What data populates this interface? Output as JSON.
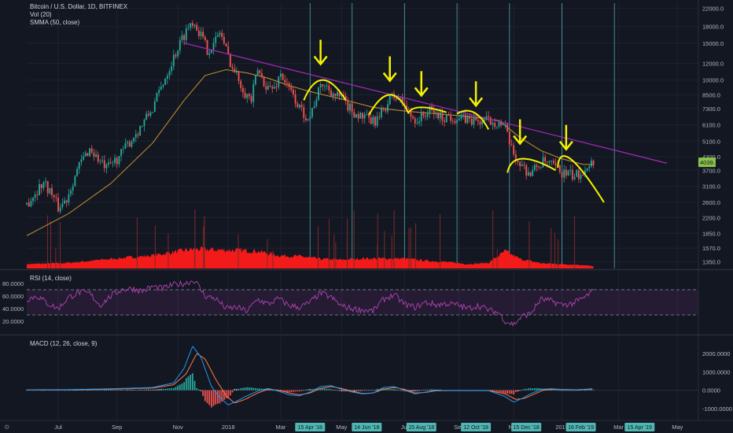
{
  "chart_data": {
    "type": "candlestick",
    "price_pane": {
      "legend": [
        "Bitcoin / U.S. Dollar, 1D, BITFINEX",
        "Vol (20)",
        "SMMA (50, close)"
      ],
      "y_scale": "log",
      "y_ticks": [
        "22000.0",
        "18000.0",
        "15000.0",
        "12000.0",
        "10000.0",
        "8500.0",
        "7300.0",
        "6100.0",
        "5100.0",
        "4300.0",
        "3700.0",
        "3100.0",
        "2600.0",
        "2200.0",
        "1850.0",
        "1570.0",
        "1350.0"
      ],
      "last_price_label": "4039.1",
      "price_path": [
        [
          0,
          2550
        ],
        [
          8,
          3250
        ],
        [
          12,
          2850
        ],
        [
          15,
          2450
        ],
        [
          19,
          2700
        ],
        [
          25,
          3900
        ],
        [
          30,
          4700
        ],
        [
          35,
          4050
        ],
        [
          38,
          3750
        ],
        [
          44,
          4300
        ],
        [
          50,
          5200
        ],
        [
          55,
          6100
        ],
        [
          60,
          7300
        ],
        [
          64,
          9200
        ],
        [
          68,
          11500
        ],
        [
          72,
          14200
        ],
        [
          76,
          17300
        ],
        [
          79,
          19300
        ],
        [
          82,
          17200
        ],
        [
          86,
          14000
        ],
        [
          89,
          14700
        ],
        [
          92,
          17100
        ],
        [
          95,
          13900
        ],
        [
          98,
          11400
        ],
        [
          101,
          10100
        ],
        [
          104,
          8700
        ],
        [
          107,
          8000
        ],
        [
          110,
          11100
        ],
        [
          113,
          9800
        ],
        [
          115,
          9200
        ],
        [
          118,
          9100
        ],
        [
          121,
          10800
        ],
        [
          124,
          9300
        ],
        [
          127,
          8400
        ],
        [
          130,
          7300
        ],
        [
          132,
          6900
        ],
        [
          135,
          6700
        ],
        [
          138,
          8300
        ],
        [
          141,
          9600
        ],
        [
          144,
          9100
        ],
        [
          147,
          8400
        ],
        [
          150,
          8200
        ],
        [
          153,
          7500
        ],
        [
          156,
          7000
        ],
        [
          159,
          6700
        ],
        [
          162,
          6500
        ],
        [
          165,
          6300
        ],
        [
          168,
          6600
        ],
        [
          171,
          7500
        ],
        [
          174,
          8300
        ],
        [
          177,
          8200
        ],
        [
          180,
          7600
        ],
        [
          183,
          6700
        ],
        [
          186,
          6400
        ],
        [
          189,
          6800
        ],
        [
          192,
          7100
        ],
        [
          195,
          6900
        ],
        [
          198,
          6600
        ],
        [
          201,
          6700
        ],
        [
          204,
          6600
        ],
        [
          207,
          6500
        ],
        [
          210,
          6500
        ],
        [
          213,
          6400
        ],
        [
          216,
          6300
        ],
        [
          219,
          6400
        ],
        [
          222,
          6350
        ],
        [
          225,
          6300
        ],
        [
          228,
          5800
        ],
        [
          231,
          4600
        ],
        [
          234,
          4100
        ],
        [
          237,
          3800
        ],
        [
          240,
          3550
        ],
        [
          243,
          3850
        ],
        [
          246,
          4050
        ],
        [
          249,
          3950
        ],
        [
          252,
          3800
        ],
        [
          255,
          3600
        ],
        [
          258,
          3550
        ],
        [
          261,
          3450
        ],
        [
          264,
          3600
        ],
        [
          267,
          3950
        ],
        [
          270,
          4039
        ]
      ],
      "smma_path": [
        [
          0,
          1800
        ],
        [
          20,
          2300
        ],
        [
          40,
          3200
        ],
        [
          60,
          5000
        ],
        [
          75,
          8000
        ],
        [
          85,
          10500
        ],
        [
          95,
          11200
        ],
        [
          105,
          10800
        ],
        [
          115,
          10200
        ],
        [
          125,
          9400
        ],
        [
          135,
          8800
        ],
        [
          150,
          8100
        ],
        [
          165,
          7400
        ],
        [
          180,
          7100
        ],
        [
          195,
          6900
        ],
        [
          210,
          6700
        ],
        [
          225,
          6400
        ],
        [
          235,
          5300
        ],
        [
          245,
          4600
        ],
        [
          255,
          4200
        ],
        [
          265,
          3950
        ],
        [
          270,
          3950
        ]
      ],
      "trendline": [
        [
          75,
          15000
        ],
        [
          305,
          4000
        ]
      ],
      "vertical_markers": [
        135,
        155,
        180,
        205,
        230,
        255,
        280
      ],
      "arc_annotations": [
        [
          [
            132,
            8000
          ],
          [
            141,
            10000
          ],
          [
            152,
            8000
          ]
        ],
        [
          [
            163,
            6800
          ],
          [
            173,
            8500
          ],
          [
            182,
            6900
          ]
        ],
        [
          [
            182,
            7000
          ],
          [
            188,
            7400
          ],
          [
            200,
            7000
          ]
        ],
        [
          [
            205,
            6900
          ],
          [
            213,
            7000
          ],
          [
            220,
            5800
          ]
        ],
        [
          [
            229,
            3600
          ],
          [
            236,
            4200
          ],
          [
            252,
            3700
          ]
        ],
        [
          [
            253,
            3800
          ],
          [
            259,
            4200
          ],
          [
            275,
            2600
          ]
        ]
      ],
      "arrows": [
        [
          140,
          12000
        ],
        [
          173,
          10000
        ],
        [
          188,
          8500
        ],
        [
          214,
          7600
        ],
        [
          235,
          5000
        ],
        [
          257,
          4700
        ]
      ]
    },
    "volume": {
      "profile": [
        [
          0,
          0.1
        ],
        [
          20,
          0.13
        ],
        [
          40,
          0.22
        ],
        [
          60,
          0.3
        ],
        [
          70,
          0.38
        ],
        [
          80,
          0.45
        ],
        [
          90,
          0.43
        ],
        [
          100,
          0.42
        ],
        [
          110,
          0.4
        ],
        [
          120,
          0.3
        ],
        [
          130,
          0.28
        ],
        [
          140,
          0.22
        ],
        [
          150,
          0.2
        ],
        [
          160,
          0.23
        ],
        [
          170,
          0.23
        ],
        [
          180,
          0.23
        ],
        [
          190,
          0.18
        ],
        [
          200,
          0.15
        ],
        [
          210,
          0.1
        ],
        [
          220,
          0.13
        ],
        [
          228,
          0.4
        ],
        [
          235,
          0.22
        ],
        [
          245,
          0.12
        ],
        [
          255,
          0.1
        ],
        [
          265,
          0.08
        ],
        [
          270,
          0.05
        ]
      ]
    },
    "rsi": {
      "label": "RSI (14, close)",
      "y_ticks": [
        "80.0000",
        "60.0000",
        "40.0000",
        "20.0000"
      ],
      "y_tick_values": [
        80,
        60,
        40,
        20
      ],
      "band": [
        70,
        30
      ],
      "path": [
        [
          0,
          55
        ],
        [
          5,
          60
        ],
        [
          10,
          48
        ],
        [
          15,
          40
        ],
        [
          20,
          58
        ],
        [
          25,
          66
        ],
        [
          30,
          64
        ],
        [
          35,
          45
        ],
        [
          40,
          60
        ],
        [
          45,
          70
        ],
        [
          50,
          72
        ],
        [
          55,
          68
        ],
        [
          60,
          75
        ],
        [
          65,
          72
        ],
        [
          70,
          78
        ],
        [
          75,
          80
        ],
        [
          80,
          85
        ],
        [
          85,
          60
        ],
        [
          90,
          56
        ],
        [
          95,
          40
        ],
        [
          100,
          42
        ],
        [
          105,
          36
        ],
        [
          110,
          55
        ],
        [
          115,
          47
        ],
        [
          120,
          56
        ],
        [
          125,
          45
        ],
        [
          130,
          42
        ],
        [
          135,
          50
        ],
        [
          140,
          65
        ],
        [
          145,
          58
        ],
        [
          150,
          44
        ],
        [
          155,
          40
        ],
        [
          160,
          38
        ],
        [
          165,
          36
        ],
        [
          170,
          55
        ],
        [
          175,
          62
        ],
        [
          180,
          47
        ],
        [
          185,
          42
        ],
        [
          190,
          50
        ],
        [
          195,
          46
        ],
        [
          200,
          48
        ],
        [
          205,
          46
        ],
        [
          210,
          40
        ],
        [
          215,
          45
        ],
        [
          220,
          38
        ],
        [
          225,
          33
        ],
        [
          228,
          20
        ],
        [
          232,
          15
        ],
        [
          236,
          28
        ],
        [
          240,
          32
        ],
        [
          245,
          55
        ],
        [
          250,
          52
        ],
        [
          255,
          46
        ],
        [
          260,
          48
        ],
        [
          265,
          56
        ],
        [
          270,
          68
        ]
      ]
    },
    "macd": {
      "label": "MACD (12, 26, close, 9)",
      "y_ticks": [
        "2000.0000",
        "1000.0000",
        "0.0000",
        "-1000.0000"
      ],
      "y_tick_values": [
        2000,
        1000,
        0,
        -1000
      ],
      "macd_path": [
        [
          0,
          20
        ],
        [
          20,
          30
        ],
        [
          40,
          80
        ],
        [
          60,
          150
        ],
        [
          70,
          400
        ],
        [
          75,
          1200
        ],
        [
          79,
          2400
        ],
        [
          83,
          1800
        ],
        [
          88,
          200
        ],
        [
          92,
          -400
        ],
        [
          96,
          -800
        ],
        [
          100,
          -600
        ],
        [
          105,
          -300
        ],
        [
          110,
          -50
        ],
        [
          115,
          100
        ],
        [
          120,
          -50
        ],
        [
          125,
          -250
        ],
        [
          130,
          -300
        ],
        [
          135,
          -100
        ],
        [
          140,
          200
        ],
        [
          145,
          250
        ],
        [
          150,
          50
        ],
        [
          155,
          -100
        ],
        [
          160,
          -200
        ],
        [
          165,
          -150
        ],
        [
          170,
          150
        ],
        [
          175,
          200
        ],
        [
          180,
          0
        ],
        [
          185,
          -200
        ],
        [
          190,
          -100
        ],
        [
          195,
          0
        ],
        [
          200,
          -20
        ],
        [
          210,
          -20
        ],
        [
          220,
          -20
        ],
        [
          228,
          -350
        ],
        [
          232,
          -650
        ],
        [
          236,
          -450
        ],
        [
          240,
          -200
        ],
        [
          245,
          50
        ],
        [
          250,
          80
        ],
        [
          255,
          40
        ],
        [
          260,
          20
        ],
        [
          265,
          40
        ],
        [
          270,
          90
        ]
      ],
      "signal_path": [
        [
          0,
          10
        ],
        [
          20,
          25
        ],
        [
          40,
          60
        ],
        [
          60,
          120
        ],
        [
          70,
          300
        ],
        [
          76,
          900
        ],
        [
          81,
          2000
        ],
        [
          85,
          1700
        ],
        [
          90,
          600
        ],
        [
          95,
          -300
        ],
        [
          99,
          -700
        ],
        [
          104,
          -500
        ],
        [
          110,
          -150
        ],
        [
          115,
          50
        ],
        [
          120,
          0
        ],
        [
          125,
          -150
        ],
        [
          130,
          -250
        ],
        [
          135,
          -150
        ],
        [
          140,
          100
        ],
        [
          145,
          200
        ],
        [
          150,
          100
        ],
        [
          155,
          -50
        ],
        [
          160,
          -180
        ],
        [
          165,
          -150
        ],
        [
          170,
          50
        ],
        [
          175,
          150
        ],
        [
          180,
          50
        ],
        [
          185,
          -150
        ],
        [
          190,
          -120
        ],
        [
          195,
          -30
        ],
        [
          200,
          -20
        ],
        [
          210,
          -20
        ],
        [
          220,
          -20
        ],
        [
          228,
          -200
        ],
        [
          233,
          -500
        ],
        [
          237,
          -450
        ],
        [
          241,
          -250
        ],
        [
          246,
          0
        ],
        [
          251,
          50
        ],
        [
          256,
          40
        ],
        [
          261,
          25
        ],
        [
          266,
          35
        ],
        [
          270,
          70
        ]
      ]
    },
    "x_axis": {
      "labels": [
        [
          15,
          "Jul"
        ],
        [
          43,
          "Sep"
        ],
        [
          72,
          "Nov"
        ],
        [
          96,
          "2018"
        ],
        [
          121,
          "Mar"
        ],
        [
          150,
          "May"
        ],
        [
          180,
          "Jul"
        ],
        [
          206,
          "Sep"
        ],
        [
          232,
          "Nov"
        ],
        [
          255,
          "2019"
        ],
        [
          282,
          "Mar"
        ],
        [
          310,
          "May"
        ]
      ],
      "highlighted": [
        [
          135,
          "15 Apr '18"
        ],
        [
          162,
          "14 Jun '18"
        ],
        [
          188,
          "15 Aug '18"
        ],
        [
          214,
          "12 Oct '18"
        ],
        [
          238,
          "15 Dec '18"
        ],
        [
          264,
          "16 Feb '19"
        ],
        [
          292,
          "15 Apr '19"
        ]
      ]
    }
  }
}
